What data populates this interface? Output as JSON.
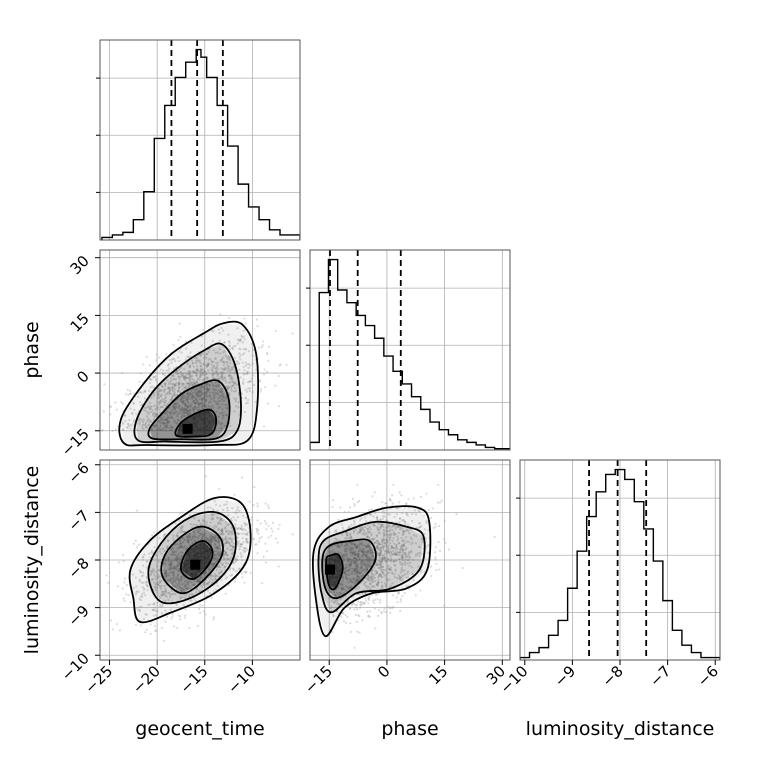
{
  "chart_data": {
    "type": "corner",
    "parameters": [
      "geocent_time",
      "phase",
      "luminosity_distance"
    ],
    "colors": {
      "ink": "#000000",
      "grid": "#b0b0b0",
      "density": "#000000",
      "scatter": "#9a9a9a"
    },
    "grid": true,
    "hist1d": [
      {
        "name": "geocent_time",
        "xlim": [
          -26,
          -5
        ],
        "quantiles": [
          -18.5,
          -15.8,
          -13.1
        ],
        "bins": [
          [
            -25.8,
            -24.7,
            1
          ],
          [
            -24.7,
            -23.6,
            2
          ],
          [
            -23.6,
            -22.5,
            3
          ],
          [
            -22.5,
            -21.4,
            8
          ],
          [
            -21.4,
            -20.3,
            19
          ],
          [
            -20.3,
            -19.2,
            40
          ],
          [
            -19.2,
            -18.1,
            53
          ],
          [
            -18.1,
            -17.0,
            64
          ],
          [
            -17.0,
            -15.9,
            70
          ],
          [
            -15.9,
            -15.4,
            75
          ],
          [
            -15.4,
            -14.8,
            72
          ],
          [
            -14.8,
            -13.7,
            64
          ],
          [
            -13.7,
            -12.6,
            53
          ],
          [
            -12.6,
            -11.5,
            37
          ],
          [
            -11.5,
            -10.4,
            22
          ],
          [
            -10.4,
            -9.3,
            13
          ],
          [
            -9.3,
            -8.2,
            8
          ],
          [
            -8.2,
            -7.1,
            4
          ],
          [
            -7.1,
            -5.0,
            2
          ]
        ]
      },
      {
        "name": "phase",
        "xlim": [
          -20,
          32
        ],
        "quantiles": [
          -14.8,
          -7.6,
          3.6
        ],
        "bins": [
          [
            -20,
            -17.6,
            3
          ],
          [
            -17.6,
            -15.2,
            62
          ],
          [
            -15.2,
            -12.8,
            75
          ],
          [
            -12.8,
            -10.4,
            63
          ],
          [
            -10.4,
            -8.0,
            58
          ],
          [
            -8.0,
            -5.6,
            53
          ],
          [
            -5.6,
            -3.2,
            49
          ],
          [
            -3.2,
            -0.8,
            44
          ],
          [
            -0.8,
            1.6,
            37
          ],
          [
            1.6,
            4.0,
            31
          ],
          [
            4.0,
            6.4,
            26
          ],
          [
            6.4,
            8.8,
            21
          ],
          [
            8.8,
            11.2,
            16
          ],
          [
            11.2,
            13.6,
            11
          ],
          [
            13.6,
            16.0,
            8
          ],
          [
            16.0,
            18.4,
            6
          ],
          [
            18.4,
            20.8,
            4
          ],
          [
            20.8,
            23.2,
            3
          ],
          [
            23.2,
            25.6,
            2
          ],
          [
            25.6,
            28.0,
            1
          ],
          [
            28.0,
            32.0,
            0.5
          ]
        ]
      },
      {
        "name": "luminosity_distance",
        "xlim": [
          -10.1,
          -5.9
        ],
        "quantiles": [
          -8.65,
          -8.05,
          -7.45
        ],
        "bins": [
          [
            -10.1,
            -9.9,
            1
          ],
          [
            -9.9,
            -9.7,
            3
          ],
          [
            -9.7,
            -9.5,
            5
          ],
          [
            -9.5,
            -9.3,
            10
          ],
          [
            -9.3,
            -9.1,
            16
          ],
          [
            -9.1,
            -8.9,
            29
          ],
          [
            -8.9,
            -8.7,
            44
          ],
          [
            -8.7,
            -8.5,
            58
          ],
          [
            -8.5,
            -8.3,
            68
          ],
          [
            -8.3,
            -8.1,
            75
          ],
          [
            -8.1,
            -7.9,
            77
          ],
          [
            -7.9,
            -7.7,
            73
          ],
          [
            -7.7,
            -7.5,
            64
          ],
          [
            -7.5,
            -7.3,
            53
          ],
          [
            -7.3,
            -7.1,
            40
          ],
          [
            -7.1,
            -6.9,
            24
          ],
          [
            -6.9,
            -6.7,
            12
          ],
          [
            -6.7,
            -6.5,
            6
          ],
          [
            -6.5,
            -6.3,
            3
          ],
          [
            -6.3,
            -5.9,
            1
          ]
        ]
      }
    ],
    "hist2d": [
      {
        "x": "geocent_time",
        "y": "phase",
        "xlim": [
          -26,
          -5
        ],
        "ylim": [
          -20,
          32
        ],
        "mean": [
          -16.2,
          -8.0
        ],
        "sd": [
          3.3,
          8.0
        ],
        "corr": 0.5,
        "skew_y": true,
        "contours": [
          [
            [
              -23.5,
              -18.2
            ],
            [
              -21.0,
              -18.7
            ],
            [
              -14.0,
              -18.7
            ],
            [
              -10.5,
              -17.5
            ],
            [
              -9.5,
              -9.0
            ],
            [
              -9.6,
              5.0
            ],
            [
              -11.0,
              12.5
            ],
            [
              -13.0,
              13.0
            ],
            [
              -15.0,
              10.5
            ],
            [
              -18.5,
              5.0
            ],
            [
              -21.5,
              -3.0
            ],
            [
              -23.8,
              -12.0
            ]
          ],
          [
            [
              -22.0,
              -17.5
            ],
            [
              -19.0,
              -17.8
            ],
            [
              -13.5,
              -17.8
            ],
            [
              -11.6,
              -15.0
            ],
            [
              -11.2,
              -8.0
            ],
            [
              -11.8,
              2.0
            ],
            [
              -13.2,
              7.5
            ],
            [
              -15.0,
              6.0
            ],
            [
              -18.0,
              1.0
            ],
            [
              -20.5,
              -5.0
            ],
            [
              -22.2,
              -12.5
            ]
          ],
          [
            [
              -20.5,
              -17.0
            ],
            [
              -17.5,
              -17.2
            ],
            [
              -13.8,
              -17.0
            ],
            [
              -12.6,
              -13.5
            ],
            [
              -12.5,
              -6.5
            ],
            [
              -13.6,
              -2.0
            ],
            [
              -15.5,
              -3.0
            ],
            [
              -17.5,
              -5.5
            ],
            [
              -19.5,
              -10.5
            ],
            [
              -20.8,
              -14.5
            ]
          ],
          [
            [
              -18.0,
              -16.2
            ],
            [
              -16.0,
              -16.5
            ],
            [
              -14.3,
              -15.8
            ],
            [
              -13.8,
              -12.0
            ],
            [
              -14.5,
              -9.5
            ],
            [
              -16.2,
              -10.8
            ],
            [
              -17.6,
              -13.2
            ]
          ]
        ],
        "peak": [
          -16.8,
          -14.5
        ]
      },
      {
        "x": "geocent_time",
        "y": "luminosity_distance",
        "xlim": [
          -26,
          -5
        ],
        "ylim": [
          -10.1,
          -5.9
        ],
        "mean": [
          -16.0,
          -8.0
        ],
        "sd": [
          3.1,
          0.55
        ],
        "corr": 0.55,
        "skew_y": false,
        "contours": [
          [
            [
              -22.5,
              -8.8
            ],
            [
              -21.8,
              -9.3
            ],
            [
              -18.5,
              -9.1
            ],
            [
              -14.0,
              -8.7
            ],
            [
              -10.8,
              -8.1
            ],
            [
              -10.2,
              -7.4
            ],
            [
              -11.2,
              -6.8
            ],
            [
              -14.0,
              -6.7
            ],
            [
              -17.5,
              -7.1
            ],
            [
              -20.8,
              -7.6
            ],
            [
              -22.8,
              -8.2
            ]
          ],
          [
            [
              -20.6,
              -8.6
            ],
            [
              -19.3,
              -8.9
            ],
            [
              -16.5,
              -8.8
            ],
            [
              -13.5,
              -8.4
            ],
            [
              -11.9,
              -7.9
            ],
            [
              -12.0,
              -7.3
            ],
            [
              -13.8,
              -7.0
            ],
            [
              -16.5,
              -7.1
            ],
            [
              -19.0,
              -7.5
            ],
            [
              -20.8,
              -8.1
            ]
          ],
          [
            [
              -19.3,
              -8.4
            ],
            [
              -17.3,
              -8.7
            ],
            [
              -15.0,
              -8.4
            ],
            [
              -13.2,
              -7.9
            ],
            [
              -13.5,
              -7.5
            ],
            [
              -15.5,
              -7.3
            ],
            [
              -18.0,
              -7.6
            ],
            [
              -19.4,
              -8.0
            ]
          ],
          [
            [
              -17.5,
              -8.2
            ],
            [
              -16.2,
              -8.4
            ],
            [
              -14.6,
              -8.1
            ],
            [
              -14.2,
              -7.8
            ],
            [
              -15.2,
              -7.6
            ],
            [
              -16.8,
              -7.8
            ]
          ]
        ],
        "peak": [
          -16.0,
          -8.1
        ]
      },
      {
        "x": "phase",
        "y": "luminosity_distance",
        "xlim": [
          -20,
          32
        ],
        "ylim": [
          -10.1,
          -5.9
        ],
        "mean": [
          -6.0,
          -8.0
        ],
        "sd": [
          8.0,
          0.55
        ],
        "corr": 0.4,
        "skew_x": true,
        "contours": [
          [
            [
              -19.0,
              -7.8
            ],
            [
              -18.5,
              -8.8
            ],
            [
              -16.0,
              -9.6
            ],
            [
              -11.0,
              -9.0
            ],
            [
              -4.0,
              -8.7
            ],
            [
              5.0,
              -8.6
            ],
            [
              10.5,
              -8.2
            ],
            [
              11.0,
              -7.2
            ],
            [
              8.0,
              -6.9
            ],
            [
              0.0,
              -6.9
            ],
            [
              -8.0,
              -7.1
            ],
            [
              -15.0,
              -7.3
            ]
          ],
          [
            [
              -17.8,
              -8.0
            ],
            [
              -17.0,
              -8.7
            ],
            [
              -14.5,
              -9.1
            ],
            [
              -8.0,
              -8.7
            ],
            [
              1.0,
              -8.6
            ],
            [
              8.5,
              -8.2
            ],
            [
              9.5,
              -7.5
            ],
            [
              5.0,
              -7.3
            ],
            [
              -3.0,
              -7.2
            ],
            [
              -11.0,
              -7.4
            ],
            [
              -16.5,
              -7.6
            ]
          ],
          [
            [
              -16.8,
              -8.0
            ],
            [
              -16.0,
              -8.6
            ],
            [
              -13.0,
              -8.8
            ],
            [
              -7.5,
              -8.5
            ],
            [
              -3.0,
              -8.0
            ],
            [
              -4.5,
              -7.6
            ],
            [
              -9.5,
              -7.6
            ],
            [
              -15.0,
              -7.7
            ]
          ],
          [
            [
              -15.8,
              -8.0
            ],
            [
              -15.2,
              -8.5
            ],
            [
              -13.5,
              -8.6
            ],
            [
              -11.5,
              -8.2
            ],
            [
              -12.5,
              -7.9
            ],
            [
              -14.5,
              -7.9
            ]
          ]
        ],
        "peak": [
          -14.8,
          -8.2
        ]
      }
    ],
    "axes": {
      "geocent_time": {
        "label": "geocent_time",
        "ticks": [
          -25,
          -20,
          -15,
          -10
        ],
        "tick_labels": [
          "−25",
          "−20",
          "−15",
          "−10"
        ]
      },
      "phase": {
        "label": "phase",
        "ticks": [
          -15,
          0,
          15,
          30
        ],
        "tick_labels": [
          "−15",
          "0",
          "15",
          "30"
        ]
      },
      "luminosity_distance": {
        "label": "luminosity_distance",
        "ticks": [
          -10,
          -9,
          -8,
          -7,
          -6
        ],
        "tick_labels": [
          "−10",
          "−9",
          "−8",
          "−7",
          "−6"
        ]
      }
    }
  }
}
